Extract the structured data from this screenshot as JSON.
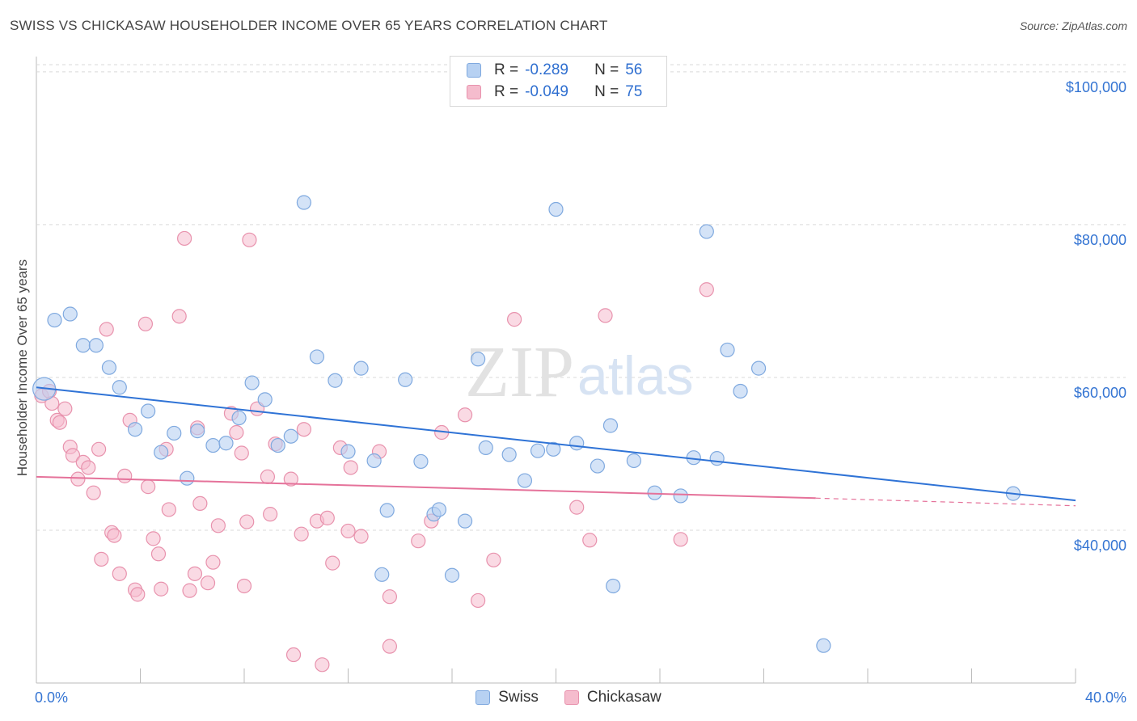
{
  "header": {
    "title": "SWISS VS CHICKASAW HOUSEHOLDER INCOME OVER 65 YEARS CORRELATION CHART",
    "source": "Source: ZipAtlas.com"
  },
  "legend": {
    "swiss": {
      "r_label": "R =",
      "r_value": "-0.289",
      "n_label": "N =",
      "n_value": "56"
    },
    "chickasaw": {
      "r_label": "R =",
      "r_value": "-0.049",
      "n_label": "N =",
      "n_value": "75"
    }
  },
  "bottom_legend": {
    "swiss": "Swiss",
    "chickasaw": "Chickasaw"
  },
  "colors": {
    "swiss_fill": "#b7d1f2",
    "swiss_stroke": "#7fa9df",
    "swiss_line": "#2f73d6",
    "chick_fill": "#f5bccd",
    "chick_stroke": "#e892ad",
    "chick_line": "#e5729a",
    "tick_label": "#3575d3",
    "grid": "#d9d9d9"
  },
  "chart_data": {
    "type": "scatter",
    "title": "SWISS VS CHICKASAW HOUSEHOLDER INCOME OVER 65 YEARS CORRELATION CHART",
    "xlabel": "",
    "ylabel": "Householder Income Over 65 years",
    "xlim": [
      0,
      40
    ],
    "ylim": [
      20000,
      102000
    ],
    "x_tick_labels": [
      "0.0%",
      "40.0%"
    ],
    "y_ticks": [
      40000,
      60000,
      80000,
      100000
    ],
    "y_tick_labels": [
      "$40,000",
      "$60,000",
      "$80,000",
      "$100,000"
    ],
    "grid": true,
    "legend_position": "top-center",
    "watermark": "ZIPatlas",
    "series": [
      {
        "name": "Swiss",
        "r": -0.289,
        "n": 56,
        "trend": {
          "x": [
            0,
            40
          ],
          "y": [
            58700,
            43900
          ]
        },
        "points": [
          [
            0.3,
            58500
          ],
          [
            0.7,
            67500
          ],
          [
            1.3,
            68300
          ],
          [
            1.8,
            64200
          ],
          [
            2.3,
            64200
          ],
          [
            2.8,
            61300
          ],
          [
            3.2,
            58700
          ],
          [
            3.8,
            53200
          ],
          [
            4.3,
            55600
          ],
          [
            4.8,
            50200
          ],
          [
            5.3,
            52700
          ],
          [
            5.8,
            46800
          ],
          [
            6.2,
            53000
          ],
          [
            6.8,
            51100
          ],
          [
            7.3,
            51400
          ],
          [
            7.8,
            54700
          ],
          [
            8.3,
            59300
          ],
          [
            8.8,
            57100
          ],
          [
            9.3,
            51100
          ],
          [
            9.8,
            52300
          ],
          [
            10.3,
            82900
          ],
          [
            10.8,
            62700
          ],
          [
            11.5,
            59600
          ],
          [
            12.0,
            50300
          ],
          [
            12.5,
            61200
          ],
          [
            13.0,
            49100
          ],
          [
            13.3,
            34200
          ],
          [
            13.5,
            42600
          ],
          [
            14.2,
            59700
          ],
          [
            14.8,
            49000
          ],
          [
            15.3,
            42100
          ],
          [
            15.5,
            42700
          ],
          [
            16.0,
            34100
          ],
          [
            16.5,
            41200
          ],
          [
            17.0,
            62400
          ],
          [
            17.3,
            50800
          ],
          [
            18.2,
            49900
          ],
          [
            18.8,
            46500
          ],
          [
            19.3,
            50400
          ],
          [
            19.9,
            50600
          ],
          [
            20.8,
            51400
          ],
          [
            21.6,
            48400
          ],
          [
            22.1,
            53700
          ],
          [
            22.2,
            32700
          ],
          [
            23.0,
            49100
          ],
          [
            23.8,
            44900
          ],
          [
            24.8,
            44500
          ],
          [
            25.3,
            49500
          ],
          [
            26.2,
            49400
          ],
          [
            25.8,
            79100
          ],
          [
            26.6,
            63600
          ],
          [
            27.1,
            58200
          ],
          [
            27.8,
            61200
          ],
          [
            20.0,
            82000
          ],
          [
            30.3,
            24900
          ],
          [
            37.6,
            44800
          ]
        ]
      },
      {
        "name": "Chickasaw",
        "r": -0.049,
        "n": 75,
        "trend": {
          "x": [
            0,
            30
          ],
          "y": [
            47000,
            44200
          ]
        },
        "trend_dashed": {
          "x": [
            30,
            40
          ],
          "y": [
            44200,
            43200
          ]
        },
        "points": [
          [
            0.2,
            57600
          ],
          [
            0.5,
            58200
          ],
          [
            0.6,
            56600
          ],
          [
            0.8,
            54400
          ],
          [
            0.9,
            54100
          ],
          [
            1.1,
            55900
          ],
          [
            1.3,
            50900
          ],
          [
            1.4,
            49800
          ],
          [
            1.6,
            46700
          ],
          [
            1.8,
            48900
          ],
          [
            2.0,
            48200
          ],
          [
            2.2,
            44900
          ],
          [
            2.4,
            50600
          ],
          [
            2.5,
            36200
          ],
          [
            2.7,
            66300
          ],
          [
            2.9,
            39700
          ],
          [
            3.0,
            39300
          ],
          [
            3.2,
            34300
          ],
          [
            3.4,
            47100
          ],
          [
            3.6,
            54400
          ],
          [
            3.8,
            32200
          ],
          [
            3.9,
            31600
          ],
          [
            4.2,
            67000
          ],
          [
            4.3,
            45700
          ],
          [
            4.5,
            38900
          ],
          [
            4.7,
            36900
          ],
          [
            4.8,
            32300
          ],
          [
            5.0,
            50600
          ],
          [
            5.1,
            42700
          ],
          [
            5.5,
            68000
          ],
          [
            5.7,
            78200
          ],
          [
            5.9,
            32100
          ],
          [
            6.1,
            34300
          ],
          [
            6.2,
            53400
          ],
          [
            6.3,
            43500
          ],
          [
            6.6,
            33100
          ],
          [
            6.8,
            35800
          ],
          [
            7.0,
            40600
          ],
          [
            7.5,
            55300
          ],
          [
            7.7,
            52800
          ],
          [
            7.9,
            50100
          ],
          [
            8.0,
            32700
          ],
          [
            8.1,
            41100
          ],
          [
            8.2,
            78000
          ],
          [
            8.5,
            55900
          ],
          [
            8.9,
            47000
          ],
          [
            9.0,
            42100
          ],
          [
            9.2,
            51300
          ],
          [
            9.8,
            46700
          ],
          [
            9.9,
            23700
          ],
          [
            10.2,
            39500
          ],
          [
            10.3,
            53200
          ],
          [
            10.8,
            41200
          ],
          [
            11.0,
            22400
          ],
          [
            11.2,
            41600
          ],
          [
            11.4,
            35700
          ],
          [
            11.7,
            50800
          ],
          [
            12.0,
            39900
          ],
          [
            12.1,
            48200
          ],
          [
            12.5,
            39200
          ],
          [
            13.2,
            50300
          ],
          [
            13.6,
            31300
          ],
          [
            13.6,
            24800
          ],
          [
            14.7,
            38600
          ],
          [
            15.2,
            41200
          ],
          [
            15.6,
            52800
          ],
          [
            16.5,
            55100
          ],
          [
            17.0,
            30800
          ],
          [
            17.6,
            36100
          ],
          [
            18.4,
            67600
          ],
          [
            20.8,
            43000
          ],
          [
            21.3,
            38700
          ],
          [
            21.9,
            68100
          ],
          [
            24.8,
            38800
          ],
          [
            25.8,
            71500
          ]
        ]
      }
    ]
  }
}
